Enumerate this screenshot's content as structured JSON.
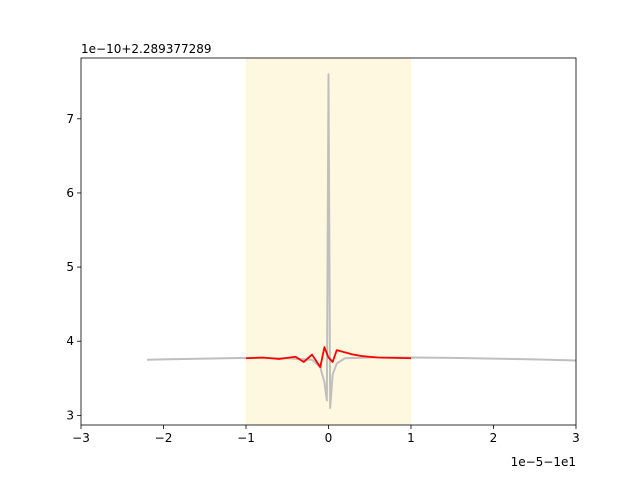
{
  "chart_data": {
    "type": "line",
    "title": "",
    "xlabel": "",
    "ylabel": "",
    "x_offset_label": "1e−5−1e1",
    "y_offset_label": "1e−10+2.289377289",
    "xlim": [
      -3,
      3
    ],
    "ylim": [
      2.87,
      7.82
    ],
    "x_ticks": [
      {
        "value": -3,
        "label": "−3"
      },
      {
        "value": -2,
        "label": "−2"
      },
      {
        "value": -1,
        "label": "−1"
      },
      {
        "value": 0,
        "label": "0"
      },
      {
        "value": 1,
        "label": "1"
      },
      {
        "value": 2,
        "label": "2"
      },
      {
        "value": 3,
        "label": "3"
      }
    ],
    "y_ticks": [
      {
        "value": 3,
        "label": "3"
      },
      {
        "value": 4,
        "label": "4"
      },
      {
        "value": 5,
        "label": "5"
      },
      {
        "value": 6,
        "label": "6"
      },
      {
        "value": 7,
        "label": "7"
      }
    ],
    "grid": false,
    "highlight_span": {
      "x0": -1,
      "x1": 1,
      "color": "#fff8e0"
    },
    "series": [
      {
        "color": "#bfbfbf",
        "x": [
          -2.2,
          -2.0,
          -1.5,
          -1.0,
          -0.5,
          -0.2,
          -0.1,
          -0.05,
          -0.02,
          0.0,
          0.02,
          0.05,
          0.1,
          0.2,
          0.5,
          1.0,
          1.5,
          2.0,
          2.5,
          3.0
        ],
        "y": [
          3.75,
          3.755,
          3.765,
          3.775,
          3.77,
          3.75,
          3.65,
          3.45,
          3.2,
          7.6,
          3.1,
          3.55,
          3.7,
          3.77,
          3.78,
          3.78,
          3.775,
          3.765,
          3.755,
          3.74
        ]
      },
      {
        "color": "#ff0000",
        "x": [
          -1.0,
          -0.8,
          -0.6,
          -0.4,
          -0.3,
          -0.2,
          -0.1,
          -0.05,
          0.0,
          0.05,
          0.1,
          0.2,
          0.3,
          0.4,
          0.6,
          0.8,
          1.0
        ],
        "y": [
          3.77,
          3.78,
          3.76,
          3.79,
          3.72,
          3.82,
          3.65,
          3.92,
          3.78,
          3.72,
          3.88,
          3.85,
          3.82,
          3.8,
          3.78,
          3.775,
          3.77
        ]
      }
    ]
  }
}
